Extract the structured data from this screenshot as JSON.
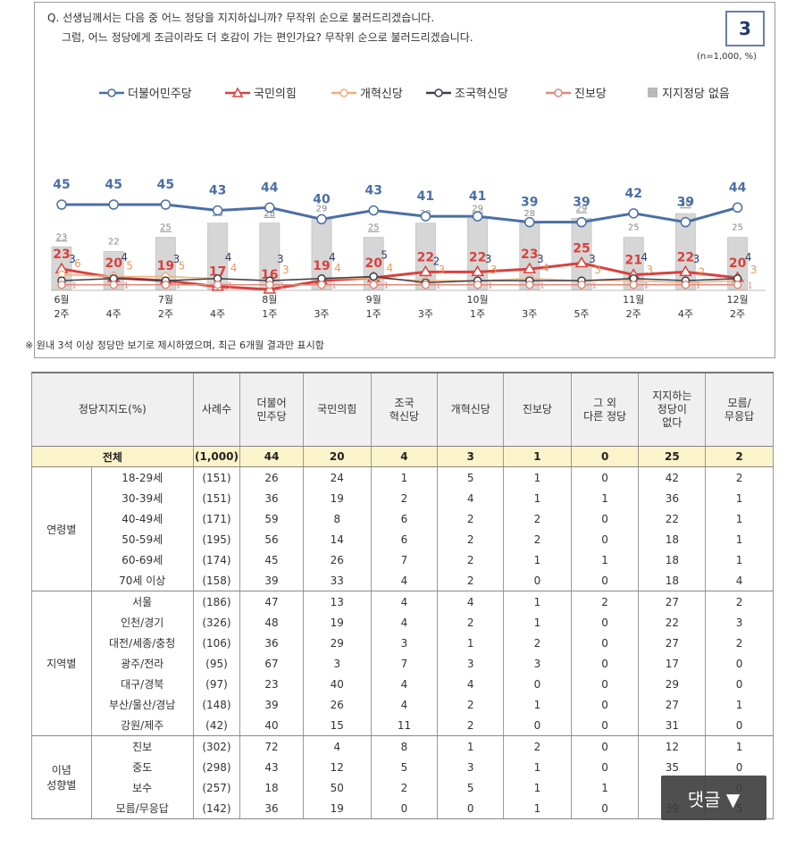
{
  "question": {
    "line1": "Q. 선생님께서는 다음 중 어느 정당을 지지하십니까? 무작위 순으로 불러드리겠습니다.",
    "line2": "그럼, 어느 정당에게 조금이라도 더 호감이 가는 편인가요? 무작위 순으로 불러드리겠습니다."
  },
  "badge": "3",
  "unit_note": "(n=1,000, %)",
  "footnote": "※ 원내 3석 이상 정당만 보기로 제시하였으며, 최근 6개월 결과만 표시함",
  "chart_data": {
    "type": "line",
    "title": "정당지지도",
    "categories": [
      "6월 2주",
      "6월 4주",
      "7월 2주",
      "7월 4주",
      "8월 1주",
      "8월 3주",
      "9월 1주",
      "9월 3주",
      "10월 1주",
      "10월 3주",
      "10월 5주",
      "11월 2주",
      "11월 4주",
      "12월 2주"
    ],
    "x_labels": [
      [
        "6월",
        "2주"
      ],
      [
        "",
        "4주"
      ],
      [
        "7월",
        "2주"
      ],
      [
        "",
        "4주"
      ],
      [
        "8월",
        "1주"
      ],
      [
        "",
        "3주"
      ],
      [
        "9월",
        "1주"
      ],
      [
        "",
        "3주"
      ],
      [
        "10월",
        "1주"
      ],
      [
        "",
        "3주"
      ],
      [
        "",
        "5주"
      ],
      [
        "11월",
        "2주"
      ],
      [
        "",
        "4주"
      ],
      [
        "12월",
        "2주"
      ]
    ],
    "series": [
      {
        "name": "더불어민주당",
        "color": "#4a6fa5",
        "values": [
          45,
          45,
          45,
          43,
          44,
          40,
          43,
          41,
          41,
          39,
          39,
          42,
          39,
          44
        ]
      },
      {
        "name": "국민의힘",
        "color": "#d9413d",
        "values": [
          23,
          20,
          19,
          17,
          16,
          19,
          20,
          22,
          22,
          23,
          25,
          21,
          22,
          20
        ]
      },
      {
        "name": "개혁신당",
        "color": "#f0b07a",
        "values": [
          6,
          5,
          5,
          4,
          3,
          4,
          4,
          3,
          3,
          4,
          3,
          3,
          2,
          3
        ]
      },
      {
        "name": "조국혁신당",
        "color": "#3a3f4a",
        "values": [
          3,
          4,
          3,
          4,
          3,
          4,
          5,
          2,
          3,
          3,
          3,
          4,
          3,
          4
        ]
      },
      {
        "name": "진보당",
        "color": "#e08878",
        "values": [
          1,
          1,
          1,
          1,
          1,
          1,
          1,
          1,
          1,
          1,
          1,
          1,
          1,
          1
        ]
      },
      {
        "name": "지지정당 없음",
        "color": "#d6d6d6",
        "type": "bar",
        "values": [
          23,
          22,
          25,
          28,
          28,
          29,
          25,
          28,
          29,
          28,
          29,
          25,
          30,
          25
        ]
      }
    ],
    "legend": [
      "더불어민주당",
      "국민의힘",
      "개혁신당",
      "조국혁신당",
      "진보당",
      "지지정당 없음"
    ]
  },
  "table": {
    "headers": [
      "정당지지도(%)",
      "사례수",
      "더불어\n민주당",
      "국민의힘",
      "조국\n혁신당",
      "개혁신당",
      "진보당",
      "그 외\n다른 정당",
      "지지하는\n정당이\n없다",
      "모름/\n무응답"
    ],
    "total": {
      "label": "전체",
      "values": [
        "(1,000)",
        "44",
        "20",
        "4",
        "3",
        "1",
        "0",
        "25",
        "2"
      ]
    },
    "groups": [
      {
        "name": "연령별",
        "rows": [
          {
            "label": "18-29세",
            "values": [
              "(151)",
              "26",
              "24",
              "1",
              "5",
              "1",
              "0",
              "42",
              "2"
            ]
          },
          {
            "label": "30-39세",
            "values": [
              "(151)",
              "36",
              "19",
              "2",
              "4",
              "1",
              "1",
              "36",
              "1"
            ]
          },
          {
            "label": "40-49세",
            "values": [
              "(171)",
              "59",
              "8",
              "6",
              "2",
              "2",
              "0",
              "22",
              "1"
            ]
          },
          {
            "label": "50-59세",
            "values": [
              "(195)",
              "56",
              "14",
              "6",
              "2",
              "2",
              "0",
              "18",
              "1"
            ]
          },
          {
            "label": "60-69세",
            "values": [
              "(174)",
              "45",
              "26",
              "7",
              "2",
              "1",
              "1",
              "18",
              "1"
            ]
          },
          {
            "label": "70세 이상",
            "values": [
              "(158)",
              "39",
              "33",
              "4",
              "2",
              "0",
              "0",
              "18",
              "4"
            ]
          }
        ]
      },
      {
        "name": "지역별",
        "rows": [
          {
            "label": "서울",
            "values": [
              "(186)",
              "47",
              "13",
              "4",
              "4",
              "1",
              "2",
              "27",
              "2"
            ]
          },
          {
            "label": "인천/경기",
            "values": [
              "(326)",
              "48",
              "19",
              "4",
              "2",
              "1",
              "0",
              "22",
              "3"
            ]
          },
          {
            "label": "대전/세종/충청",
            "values": [
              "(106)",
              "36",
              "29",
              "3",
              "1",
              "2",
              "0",
              "27",
              "2"
            ]
          },
          {
            "label": "광주/전라",
            "values": [
              "(95)",
              "67",
              "3",
              "7",
              "3",
              "3",
              "0",
              "17",
              "0"
            ]
          },
          {
            "label": "대구/경북",
            "values": [
              "(97)",
              "23",
              "40",
              "4",
              "4",
              "0",
              "0",
              "29",
              "0"
            ]
          },
          {
            "label": "부산/울산/경남",
            "values": [
              "(148)",
              "39",
              "26",
              "4",
              "2",
              "1",
              "0",
              "27",
              "1"
            ]
          },
          {
            "label": "강원/제주",
            "values": [
              "(42)",
              "40",
              "15",
              "11",
              "2",
              "0",
              "0",
              "31",
              "0"
            ]
          }
        ]
      },
      {
        "name": "이념\n성향별",
        "rows": [
          {
            "label": "진보",
            "values": [
              "(302)",
              "72",
              "4",
              "8",
              "1",
              "2",
              "0",
              "12",
              "1"
            ]
          },
          {
            "label": "중도",
            "values": [
              "(298)",
              "43",
              "12",
              "5",
              "3",
              "1",
              "0",
              "35",
              "0"
            ]
          },
          {
            "label": "보수",
            "values": [
              "(257)",
              "18",
              "50",
              "2",
              "5",
              "1",
              "1",
              "",
              "0"
            ]
          },
          {
            "label": "모름/무응답",
            "values": [
              "(142)",
              "36",
              "19",
              "0",
              "0",
              "1",
              "0",
              "39",
              "5"
            ]
          }
        ]
      }
    ]
  },
  "reply_button": "댓글 ▼"
}
